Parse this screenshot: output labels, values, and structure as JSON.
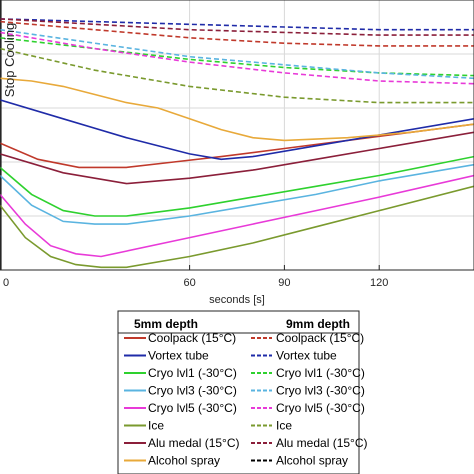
{
  "chart_data": {
    "type": "line",
    "xlabel": "seconds [s]",
    "ylabel": "",
    "xlim": [
      0,
      150
    ],
    "ylim": [
      0,
      100
    ],
    "x_ticks": [
      0,
      60,
      90,
      120
    ],
    "x_tick_labels": [
      "0",
      "60",
      "90",
      "120"
    ],
    "grid": true,
    "stop_cooling_x": 0,
    "stop_cooling_label": "Stop Cooling",
    "legend": {
      "placement": "bottom",
      "col1_header": "5mm depth",
      "col2_header": "9mm depth",
      "labels": [
        "Coolpack (15°C)",
        "Vortex tube",
        "Cryo lvl1 (-30°C)",
        "Cryo lvl3 (-30°C)",
        "Cryo lvl5 (-30°C)",
        "Ice",
        "Alu medal (15°C)",
        "Alcohol spray"
      ]
    },
    "series": [
      {
        "depth": "5mm",
        "group": 0,
        "color": "#c0392b",
        "dash": false,
        "x": [
          0,
          12,
          25,
          40,
          55,
          70,
          90,
          110,
          130,
          150
        ],
        "y": [
          47,
          41,
          38,
          38,
          40,
          42,
          45,
          48,
          51,
          54
        ]
      },
      {
        "depth": "5mm",
        "group": 1,
        "color": "#1f2ba8",
        "dash": false,
        "x": [
          0,
          20,
          40,
          60,
          70,
          80,
          100,
          120,
          150
        ],
        "y": [
          63,
          56,
          49,
          43,
          41,
          42,
          46,
          50,
          56
        ]
      },
      {
        "depth": "5mm",
        "group": 2,
        "color": "#2ed12e",
        "dash": false,
        "x": [
          0,
          10,
          20,
          30,
          40,
          60,
          80,
          100,
          120,
          150
        ],
        "y": [
          38,
          28,
          22,
          20,
          20,
          23,
          27,
          31,
          35,
          42
        ]
      },
      {
        "depth": "5mm",
        "group": 3,
        "color": "#5ab4e0",
        "dash": false,
        "x": [
          0,
          10,
          20,
          30,
          40,
          60,
          80,
          100,
          120,
          150
        ],
        "y": [
          35,
          24,
          18,
          17,
          17,
          20,
          24,
          28,
          33,
          39
        ]
      },
      {
        "depth": "5mm",
        "group": 4,
        "color": "#e83ad8",
        "dash": false,
        "x": [
          0,
          8,
          16,
          24,
          32,
          40,
          60,
          80,
          100,
          120,
          150
        ],
        "y": [
          28,
          17,
          9,
          6,
          5,
          7,
          12,
          17,
          22,
          27,
          35
        ]
      },
      {
        "depth": "5mm",
        "group": 5,
        "color": "#7a9a2e",
        "dash": false,
        "x": [
          0,
          8,
          16,
          24,
          32,
          40,
          60,
          80,
          100,
          120,
          150
        ],
        "y": [
          24,
          12,
          5,
          2,
          1,
          1,
          5,
          10,
          16,
          22,
          31
        ]
      },
      {
        "depth": "5mm",
        "group": 6,
        "color": "#8b1f3a",
        "dash": false,
        "x": [
          0,
          20,
          40,
          60,
          80,
          100,
          120,
          150
        ],
        "y": [
          43,
          36,
          32,
          34,
          37,
          41,
          45,
          51
        ]
      },
      {
        "depth": "5mm",
        "group": 7,
        "color": "#e8a93a",
        "dash": false,
        "x": [
          0,
          10,
          20,
          30,
          40,
          50,
          60,
          70,
          80,
          90,
          110,
          130,
          150
        ],
        "y": [
          71,
          70,
          68,
          65,
          62,
          60,
          56,
          52,
          49,
          48,
          49,
          51,
          54
        ]
      },
      {
        "depth": "9mm",
        "group": 0,
        "color": "#c0392b",
        "dash": true,
        "x": [
          0,
          30,
          60,
          90,
          120,
          150
        ],
        "y": [
          92,
          89,
          86,
          84,
          83,
          83
        ]
      },
      {
        "depth": "9mm",
        "group": 1,
        "color": "#1f2ba8",
        "dash": true,
        "x": [
          0,
          30,
          60,
          90,
          120,
          150
        ],
        "y": [
          93,
          92,
          91,
          90,
          89,
          89
        ]
      },
      {
        "depth": "9mm",
        "group": 2,
        "color": "#2ed12e",
        "dash": true,
        "x": [
          0,
          30,
          60,
          90,
          120,
          150
        ],
        "y": [
          86,
          82,
          78,
          75,
          73,
          72
        ]
      },
      {
        "depth": "9mm",
        "group": 3,
        "color": "#5ab4e0",
        "dash": true,
        "x": [
          0,
          30,
          60,
          90,
          120,
          150
        ],
        "y": [
          89,
          84,
          79,
          76,
          73,
          71
        ]
      },
      {
        "depth": "9mm",
        "group": 4,
        "color": "#e83ad8",
        "dash": true,
        "x": [
          0,
          30,
          60,
          90,
          120,
          150
        ],
        "y": [
          88,
          82,
          77,
          73,
          70,
          69
        ]
      },
      {
        "depth": "9mm",
        "group": 5,
        "color": "#7a9a2e",
        "dash": true,
        "x": [
          0,
          30,
          60,
          90,
          120,
          150
        ],
        "y": [
          82,
          74,
          68,
          64,
          62,
          62
        ]
      },
      {
        "depth": "9mm",
        "group": 6,
        "color": "#8b1f3a",
        "dash": true,
        "x": [
          0,
          30,
          60,
          90,
          120,
          150
        ],
        "y": [
          93,
          91,
          89,
          88,
          87,
          87
        ]
      }
    ]
  }
}
